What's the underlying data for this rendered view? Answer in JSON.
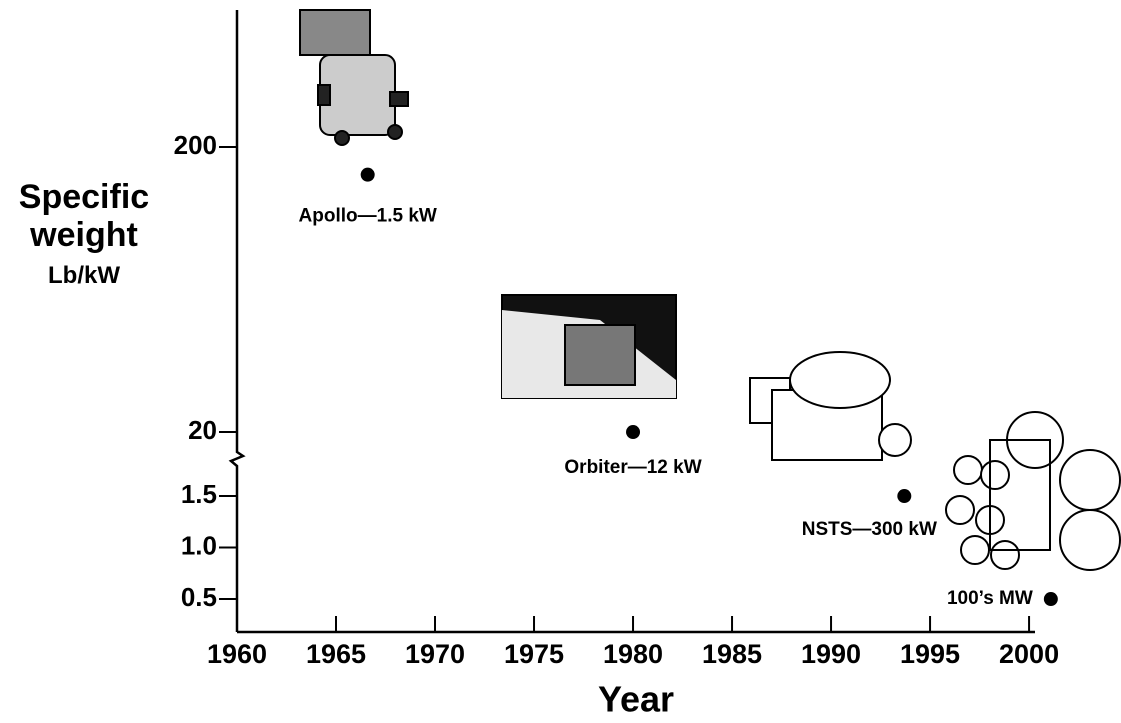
{
  "chart_data": {
    "type": "scatter",
    "xlabel": "Year",
    "ylabel": "Specific weight",
    "yunit": "Lb/kW",
    "xlim": [
      1960,
      2000.3
    ],
    "xticks": [
      1960,
      1965,
      1970,
      1975,
      1980,
      1985,
      1990,
      1995,
      2000
    ],
    "y_segments": [
      {
        "scale": "linear",
        "ylim": [
          0.18,
          1.85
        ],
        "yticks": [
          0.5,
          {
            "value": 1,
            "label": "1.0"
          },
          1.5
        ]
      },
      {
        "scale": "log",
        "ylim": [
          15.7,
          605
        ],
        "yticks": [
          20,
          200
        ]
      }
    ],
    "color": "#000000",
    "x": [
      1966.6,
      1980,
      1993.7,
      2001.1
    ],
    "values": [
      160,
      20,
      1.5,
      0.5
    ],
    "point_labels": [
      "Apollo—1.5 kW",
      "Orbiter—12 kW",
      "NSTS—300 kW",
      "100’s MW"
    ]
  }
}
